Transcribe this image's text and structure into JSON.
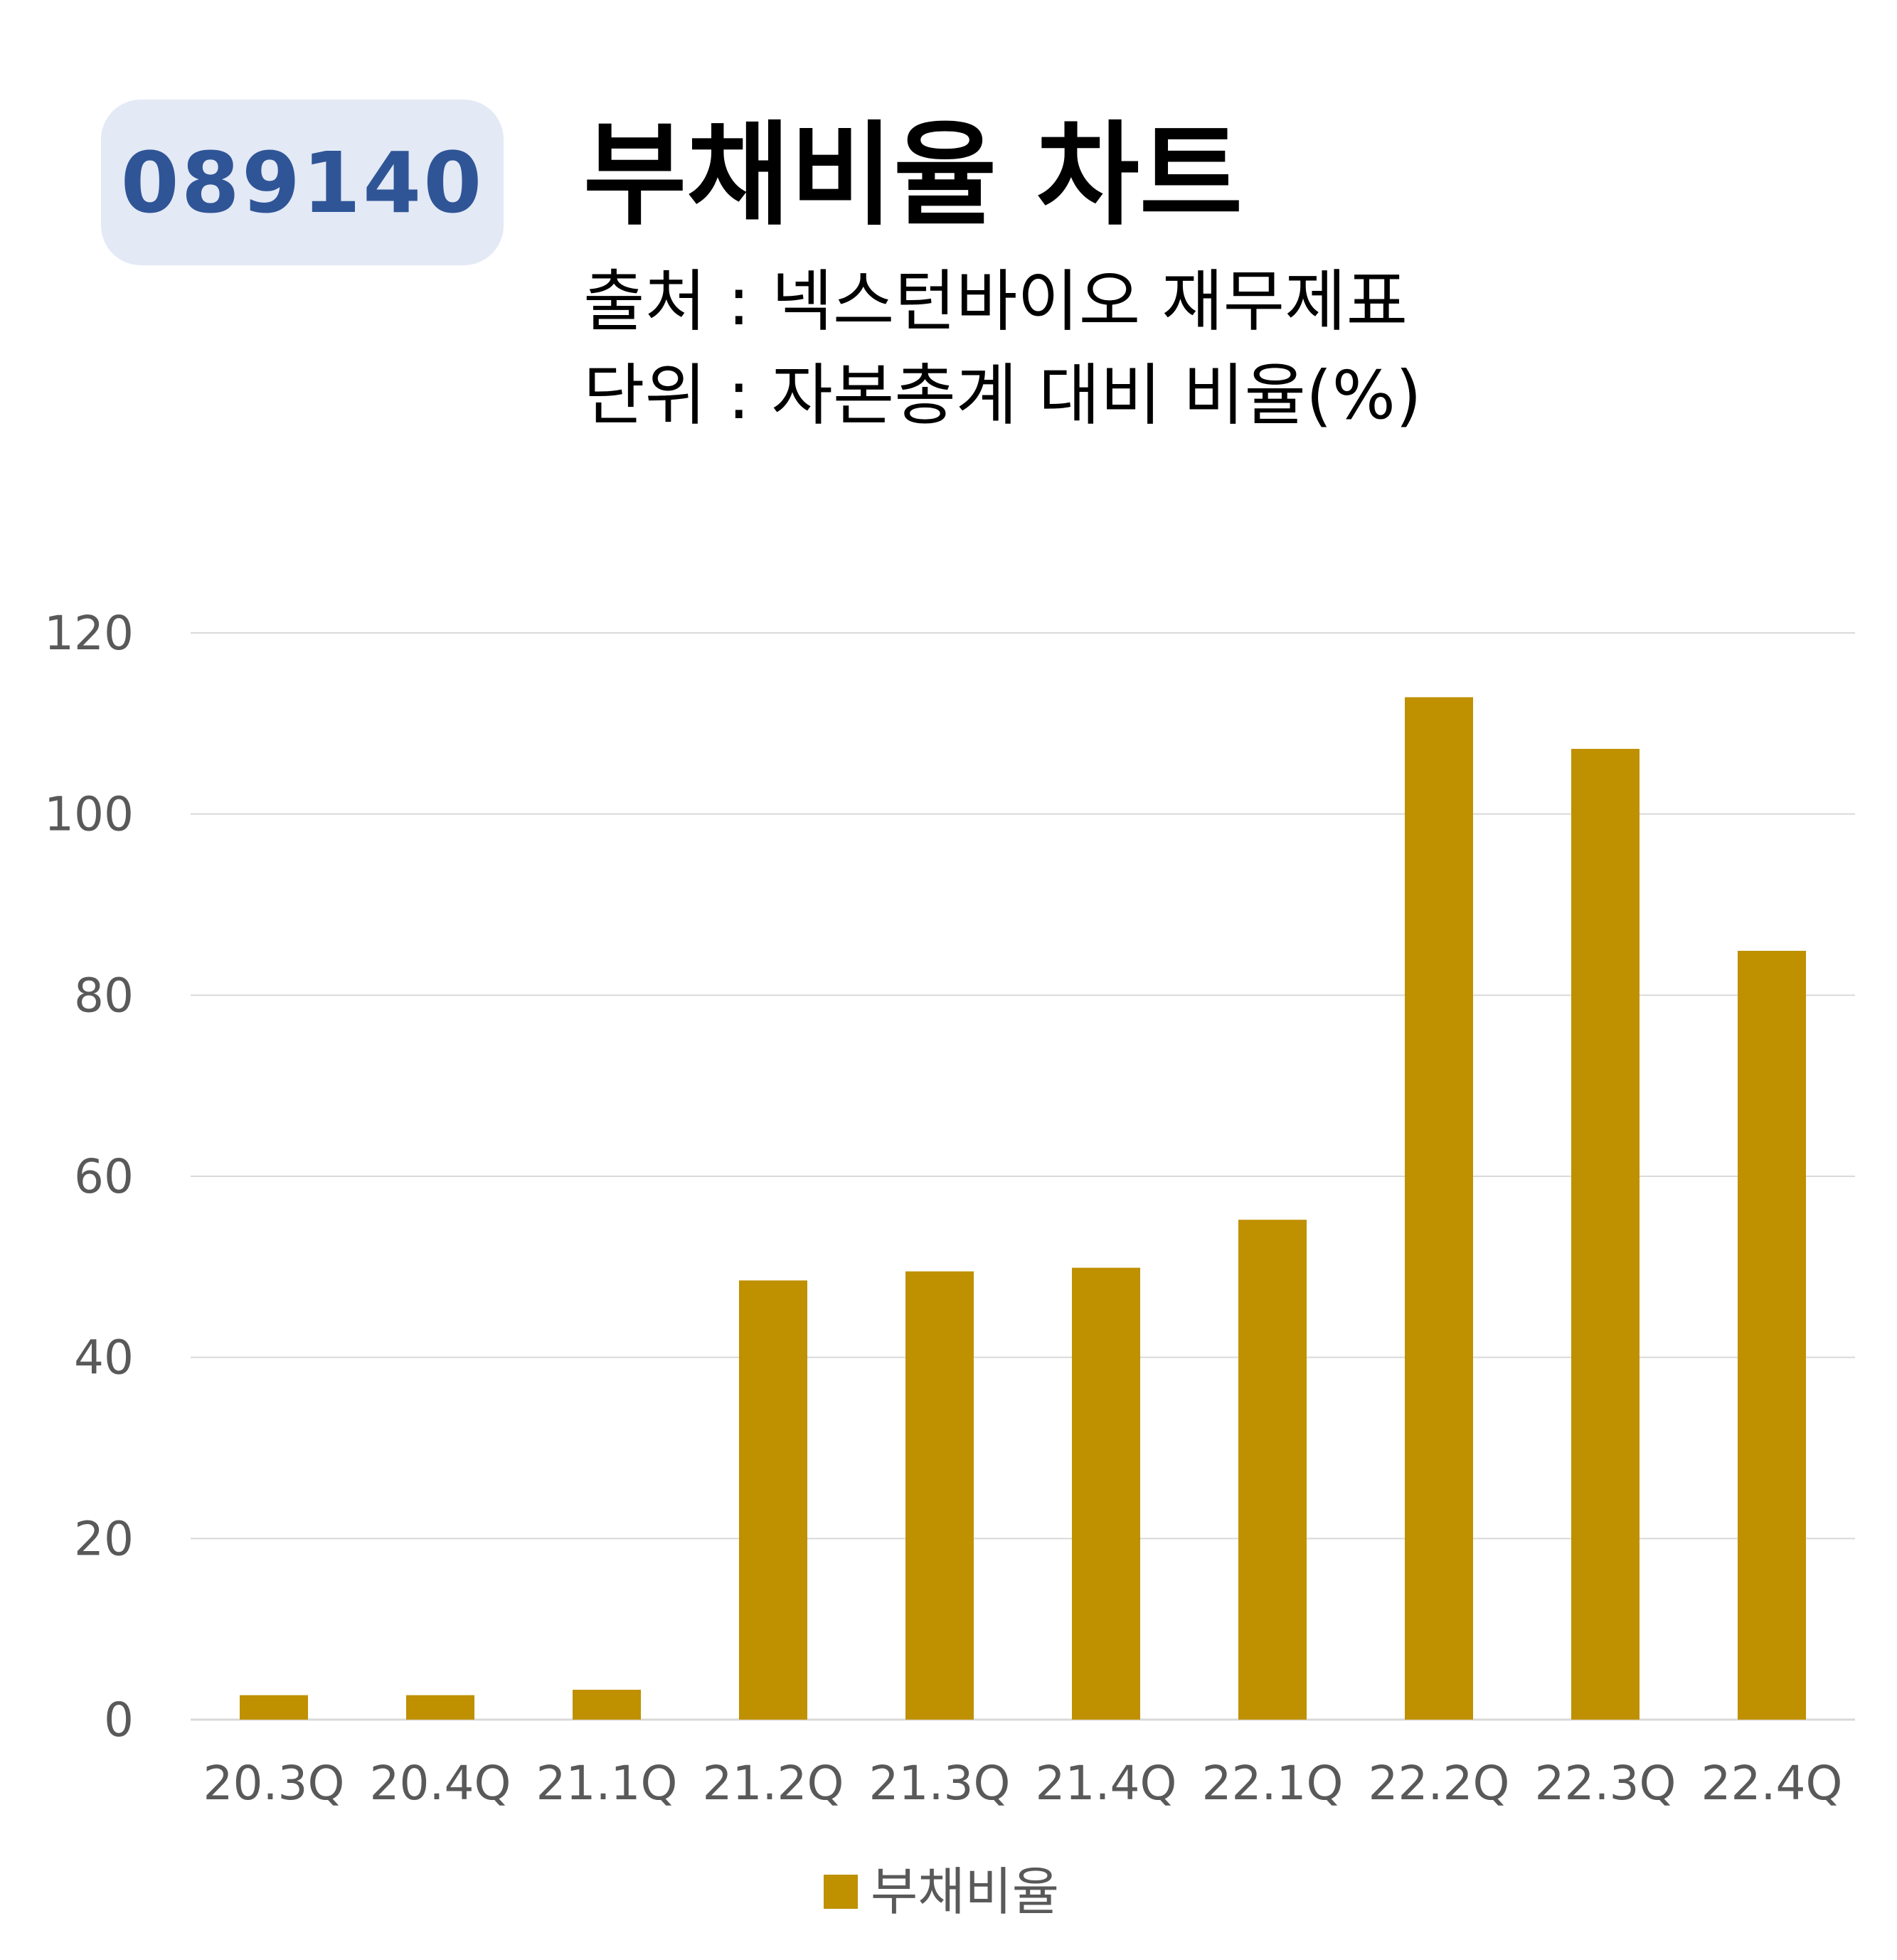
{
  "badge": {
    "code": "089140"
  },
  "header": {
    "title": "부채비율 차트",
    "source": "출처 : 넥스턴바이오 재무제표",
    "unit": "단위 : 자본총계 대비 비율(%)"
  },
  "colors": {
    "bar": "#bf9000",
    "badge_bg": "#e3e9f5",
    "badge_text": "#2f5597",
    "grid": "#d9d9d9"
  },
  "chart_data": {
    "type": "bar",
    "categories": [
      "20.3Q",
      "20.4Q",
      "21.1Q",
      "21.2Q",
      "21.3Q",
      "21.4Q",
      "22.1Q",
      "22.2Q",
      "22.3Q",
      "22.4Q"
    ],
    "series": [
      {
        "name": "부채비율",
        "values": [
          2.7,
          2.7,
          3.3,
          48.5,
          49.5,
          49.9,
          55.2,
          112.9,
          107.2,
          84.9
        ]
      }
    ],
    "yticks": [
      0,
      20,
      40,
      60,
      80,
      100,
      120
    ],
    "ylim": [
      0,
      120
    ],
    "grid": true,
    "legend": "bottom-center"
  }
}
